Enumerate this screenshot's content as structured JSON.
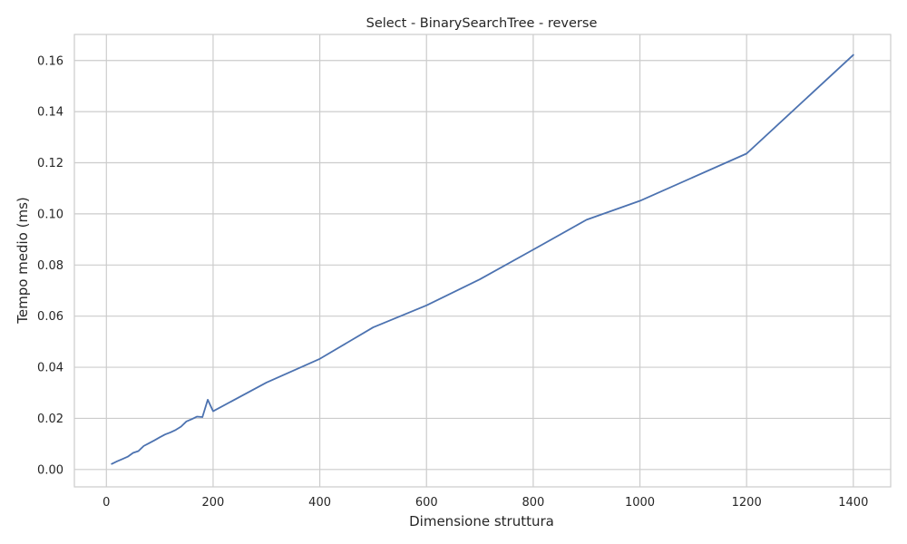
{
  "chart_data": {
    "type": "line",
    "title": "Select - BinarySearchTree - reverse",
    "xlabel": "Dimensione struttura",
    "ylabel": "Tempo medio (ms)",
    "xlim": [
      -60,
      1470
    ],
    "ylim": [
      -0.0068,
      0.1702
    ],
    "xticks": [
      0,
      200,
      400,
      600,
      800,
      1000,
      1200,
      1400
    ],
    "yticks": [
      0.0,
      0.02,
      0.04,
      0.06,
      0.08,
      0.1,
      0.12,
      0.14,
      0.16
    ],
    "xtick_labels": [
      "0",
      "200",
      "400",
      "600",
      "800",
      "1000",
      "1200",
      "1400"
    ],
    "ytick_labels": [
      "0.00",
      "0.02",
      "0.04",
      "0.06",
      "0.08",
      "0.10",
      "0.12",
      "0.14",
      "0.16"
    ],
    "grid": true,
    "colors": {
      "line": "#4c72b0"
    },
    "series": [
      {
        "x": [
          10,
          20,
          30,
          40,
          50,
          60,
          70,
          80,
          90,
          100,
          110,
          120,
          130,
          140,
          150,
          160,
          170,
          180,
          190,
          200,
          300,
          400,
          500,
          600,
          700,
          800,
          900,
          1000,
          1200,
          1400
        ],
        "y": [
          0.0022,
          0.0032,
          0.0041,
          0.005,
          0.0065,
          0.0072,
          0.0092,
          0.0103,
          0.0114,
          0.0126,
          0.0137,
          0.0145,
          0.0155,
          0.0168,
          0.0188,
          0.0197,
          0.0207,
          0.0205,
          0.0273,
          0.0228,
          0.034,
          0.0433,
          0.0556,
          0.0642,
          0.0744,
          0.086,
          0.0977,
          0.1051,
          0.1236,
          0.1622
        ]
      }
    ]
  }
}
